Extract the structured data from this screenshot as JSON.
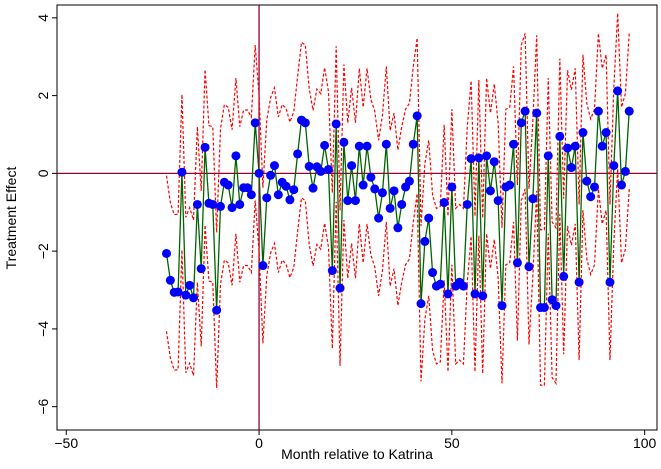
{
  "chart_data": {
    "type": "line_ci",
    "x_label": "Month relative to Katrina",
    "y_label": "Treatment Effect",
    "x": [
      -24,
      -23,
      -22,
      -21,
      -20,
      -19,
      -18,
      -17,
      -16,
      -15,
      -14,
      -13,
      -12,
      -11,
      -10,
      -9,
      -8,
      -7,
      -6,
      -5,
      -4,
      -3,
      -2,
      -1,
      0,
      1,
      2,
      3,
      4,
      5,
      6,
      7,
      8,
      9,
      10,
      11,
      12,
      13,
      14,
      15,
      16,
      17,
      18,
      19,
      20,
      21,
      22,
      23,
      24,
      25,
      26,
      27,
      28,
      29,
      30,
      31,
      32,
      33,
      34,
      35,
      36,
      37,
      38,
      39,
      40,
      41,
      42,
      43,
      44,
      45,
      46,
      47,
      48,
      49,
      50,
      51,
      52,
      53,
      54,
      55,
      56,
      57,
      58,
      59,
      60,
      61,
      62,
      63,
      64,
      65,
      66,
      67,
      68,
      69,
      70,
      71,
      72,
      73,
      74,
      75,
      76,
      77,
      78,
      79,
      80,
      81,
      82,
      83,
      84,
      85,
      86,
      87,
      88,
      89,
      90,
      91,
      92,
      93,
      94,
      95,
      96
    ],
    "values": [
      -2.06,
      -2.75,
      -3.06,
      -3.05,
      0.03,
      -3.13,
      -2.88,
      -3.2,
      -0.8,
      -2.45,
      0.67,
      -0.77,
      -0.8,
      -3.52,
      -0.85,
      -0.23,
      -0.3,
      -0.88,
      0.45,
      -0.8,
      -0.37,
      -0.37,
      -0.55,
      1.3,
      0,
      -2.37,
      -0.63,
      -0.05,
      0.2,
      -0.55,
      -0.23,
      -0.33,
      -0.68,
      -0.42,
      0.5,
      1.37,
      1.3,
      0.18,
      -0.38,
      0.17,
      0.05,
      0.72,
      0.1,
      -2.5,
      1.27,
      -2.95,
      0.8,
      -0.7,
      0.2,
      -0.7,
      0.7,
      -0.3,
      0.7,
      -0.1,
      -0.4,
      -1.15,
      -0.5,
      0.75,
      -0.9,
      -0.45,
      -1.4,
      -0.8,
      -0.35,
      -0.2,
      0.75,
      1.48,
      -3.35,
      -1.75,
      -1.15,
      -2.55,
      -2.9,
      -2.85,
      -0.75,
      -3.1,
      -0.35,
      -2.9,
      -2.8,
      -2.9,
      -0.8,
      0.38,
      -3.1,
      0.4,
      -3.15,
      0.45,
      -0.45,
      0.3,
      -0.7,
      -3.4,
      -0.35,
      -0.3,
      0.75,
      -2.3,
      1.3,
      1.6,
      -2.4,
      -0.65,
      1.55,
      -3.45,
      -3.45,
      0.45,
      -3.25,
      -3.4,
      0.95,
      -2.65,
      0.65,
      0.15,
      0.7,
      -2.8,
      1.05,
      -0.2,
      -0.6,
      -0.35,
      1.6,
      0.7,
      1.05,
      -2.8,
      0.2,
      2.12,
      -0.3,
      0.05,
      1.6
    ],
    "upper": [
      -0.06,
      -0.75,
      -1.06,
      -1.05,
      2.03,
      -1.13,
      -0.88,
      -1.2,
      1.2,
      -0.45,
      2.67,
      1.23,
      1.2,
      -1.52,
      1.15,
      1.77,
      1.7,
      1.12,
      2.45,
      1.2,
      1.63,
      1.63,
      1.45,
      3.3,
      2,
      -0.37,
      1.37,
      1.95,
      2.2,
      1.45,
      1.77,
      1.67,
      1.32,
      1.58,
      2.5,
      3.37,
      3.3,
      2.18,
      1.62,
      2.17,
      2.05,
      2.72,
      2.1,
      -0.5,
      3.27,
      -0.95,
      2.8,
      1.3,
      2.2,
      1.3,
      2.7,
      1.7,
      2.7,
      1.9,
      1.6,
      0.85,
      1.5,
      2.75,
      1.1,
      1.55,
      0.6,
      1.2,
      1.65,
      1.8,
      2.75,
      3.48,
      -1.35,
      0.25,
      0.85,
      -0.55,
      -0.9,
      -0.85,
      1.25,
      -1.1,
      1.65,
      -0.9,
      -0.8,
      -0.9,
      1.2,
      2.38,
      -1.1,
      2.4,
      -1.15,
      2.45,
      1.55,
      2.3,
      1.3,
      -1.4,
      1.65,
      1.7,
      2.75,
      -0.3,
      3.3,
      3.6,
      -0.4,
      1.35,
      3.55,
      -1.45,
      -1.45,
      2.45,
      -1.25,
      -1.4,
      2.95,
      -0.65,
      2.65,
      2.15,
      2.7,
      -0.8,
      3.05,
      1.8,
      1.4,
      1.65,
      3.6,
      2.7,
      3.05,
      -0.8,
      2.2,
      4.12,
      1.7,
      2.05,
      3.6
    ],
    "lower": [
      -4.06,
      -4.75,
      -5.06,
      -5.05,
      -1.97,
      -5.13,
      -4.88,
      -5.2,
      -2.8,
      -4.45,
      -1.33,
      -2.77,
      -2.8,
      -5.52,
      -2.85,
      -2.23,
      -2.3,
      -2.88,
      -1.55,
      -2.8,
      -2.37,
      -2.37,
      -2.55,
      -0.7,
      -2,
      -4.37,
      -2.63,
      -2.05,
      -1.8,
      -2.55,
      -2.23,
      -2.33,
      -2.68,
      -2.42,
      -1.5,
      -0.63,
      -0.7,
      -1.82,
      -2.38,
      -1.83,
      -1.95,
      -1.28,
      -1.9,
      -4.5,
      -0.73,
      -4.95,
      -1.2,
      -2.7,
      -1.8,
      -2.7,
      -1.3,
      -2.3,
      -1.3,
      -2.1,
      -2.4,
      -3.15,
      -2.5,
      -1.25,
      -2.9,
      -2.45,
      -3.4,
      -2.8,
      -2.35,
      -2.2,
      -1.25,
      -0.52,
      -5.35,
      -3.75,
      -3.15,
      -4.55,
      -4.9,
      -4.85,
      -2.75,
      -5.1,
      -2.35,
      -4.9,
      -4.8,
      -4.9,
      -2.8,
      -1.62,
      -5.1,
      -1.6,
      -5.15,
      -1.55,
      -2.45,
      -1.7,
      -2.7,
      -5.4,
      -2.35,
      -2.3,
      -1.25,
      -4.3,
      -0.7,
      -0.4,
      -4.4,
      -2.65,
      -0.45,
      -5.45,
      -5.45,
      -1.55,
      -5.25,
      -5.4,
      -1.05,
      -4.65,
      -1.35,
      -1.85,
      -1.3,
      -4.8,
      -0.95,
      -2.2,
      -2.6,
      -2.35,
      -0.4,
      -1.3,
      -0.95,
      -4.8,
      -1.8,
      0.12,
      -2.3,
      -1.95,
      -0.4
    ],
    "point_color": "#0000ff",
    "line_color": "#006400",
    "band_color": "#ff0000",
    "reference_lines": {
      "x": 0,
      "y": 0,
      "color": "#990033"
    },
    "xlim": [
      -52.4,
      103.2
    ],
    "ylim": [
      -6.6,
      4.33
    ],
    "xticks": [
      {
        "value": -50,
        "label": "−50"
      },
      0,
      50,
      100
    ],
    "yticks": [
      {
        "value": -6,
        "label": "−6"
      },
      {
        "value": -4,
        "label": "−4"
      },
      {
        "value": -2,
        "label": "−2"
      },
      0,
      2,
      4
    ]
  }
}
